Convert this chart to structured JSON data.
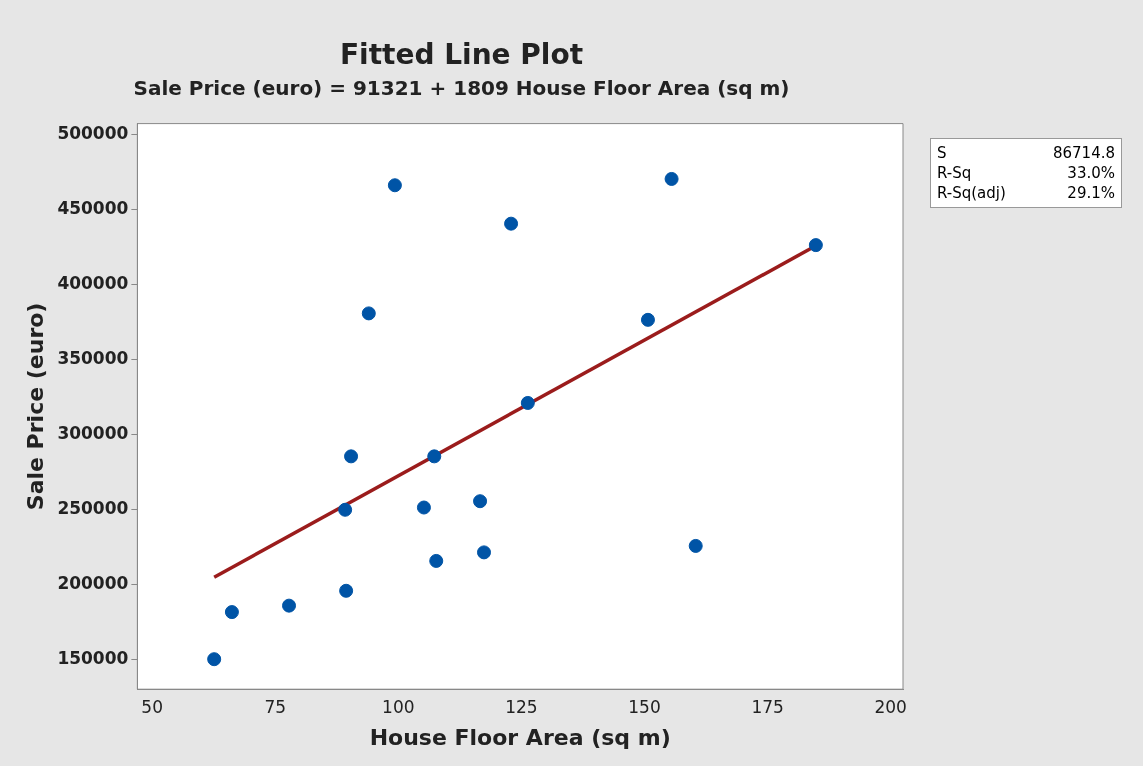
{
  "chart_data": {
    "type": "scatter",
    "title": "Fitted Line Plot",
    "subtitle": "Sale Price (euro) = 91321 + 1809 House Floor Area (sq m)",
    "xlabel": "House Floor Area (sq m)",
    "ylabel": "Sale Price (euro)",
    "xlim": [
      47,
      202.5
    ],
    "ylim": [
      130000,
      507000
    ],
    "xticks": [
      50,
      75,
      100,
      125,
      150,
      175,
      200
    ],
    "yticks": [
      150000,
      200000,
      250000,
      300000,
      350000,
      400000,
      450000,
      500000
    ],
    "legend": false,
    "annotations": [
      "S",
      "86714.8",
      "R-Sq",
      "33.0%",
      "R-Sq(adj)",
      "29.1%"
    ],
    "series": [
      {
        "marker": "circle",
        "color": "#0054a6",
        "x": [
          62.6,
          66.2,
          77.8,
          89.4,
          89.2,
          90.4,
          94.0,
          99.3,
          105.2,
          107.3,
          107.7,
          116.6,
          117.4,
          122.9,
          126.3,
          150.7,
          155.5,
          160.4,
          184.8
        ],
        "values": [
          150000,
          181400,
          185700,
          195600,
          249600,
          285200,
          380500,
          465900,
          251100,
          285200,
          215500,
          255300,
          221200,
          440300,
          320800,
          376200,
          470100,
          225500,
          426000
        ]
      },
      {
        "type": "line",
        "marker": "none",
        "color": "#9b1c1c",
        "line_style": "solid",
        "x": [
          62.6,
          184.8
        ],
        "values": [
          204600,
          425600
        ]
      }
    ]
  }
}
